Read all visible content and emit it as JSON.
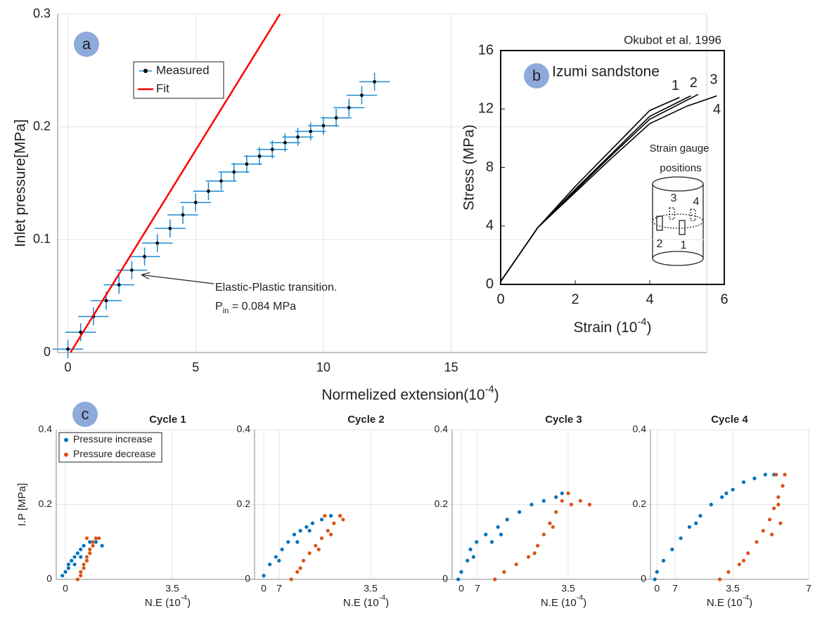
{
  "chart_data": [
    {
      "type": "scatter",
      "panel_label": "a",
      "xlabel": {
        "text": "Normelized extension(10",
        "sup": "-4",
        "end": ")"
      },
      "ylabel": "Inlet pressure[MPa]",
      "xlim": [
        -0.4,
        25
      ],
      "ylim": [
        0,
        0.3
      ],
      "xticks": [
        0,
        5,
        10,
        15
      ],
      "yticks": [
        0,
        0.1,
        0.2,
        0.3
      ],
      "grid": true,
      "legend": "upper left",
      "series": [
        {
          "name": "Measured",
          "color": "#000000",
          "error_color": "#1a8ad4",
          "x": [
            0,
            0.5,
            1,
            1.5,
            2,
            2.5,
            3,
            3.5,
            4,
            4.5,
            5,
            5.5,
            6,
            6.5,
            7,
            7.5,
            8,
            8.5,
            9,
            9.5,
            10,
            10.5,
            11,
            11.5,
            12
          ],
          "values": [
            0.003,
            0.018,
            0.032,
            0.046,
            0.06,
            0.073,
            0.085,
            0.097,
            0.11,
            0.122,
            0.133,
            0.143,
            0.152,
            0.16,
            0.167,
            0.174,
            0.18,
            0.186,
            0.191,
            0.196,
            0.201,
            0.208,
            0.217,
            0.228,
            0.24
          ],
          "x_error": 0.6,
          "y_error": 0.008
        },
        {
          "name": "Fit",
          "color": "#ff0000",
          "style": "line",
          "x": [
            0.1,
            8.3
          ],
          "values": [
            0,
            0.3
          ]
        }
      ],
      "annotation": {
        "text": "Elastic-Plastic transition.",
        "line2": {
          "text": "P",
          "sub": "in",
          "end": " = 0.084 MPa"
        },
        "xy": [
          2.8,
          0.07
        ]
      }
    },
    {
      "type": "line",
      "panel_label": "b",
      "title": "Okubot et al. 1996",
      "subtitle": "Izumi  sandstone",
      "xlabel": {
        "text": "Strain (10",
        "sup": "-4",
        "end": ")"
      },
      "ylabel": "Stress (MPa)",
      "xlim": [
        0,
        6
      ],
      "ylim": [
        0,
        16
      ],
      "xticks": [
        0,
        2,
        4,
        6
      ],
      "yticks": [
        0,
        4,
        8,
        12,
        16
      ],
      "grid": false,
      "series": [
        {
          "name": "1",
          "color": "#000000",
          "x": [
            0,
            1,
            2,
            3,
            4,
            4.8
          ],
          "values": [
            0.2,
            3.9,
            6.7,
            9.3,
            11.9,
            12.8
          ]
        },
        {
          "name": "2",
          "color": "#000000",
          "x": [
            0,
            1,
            2,
            3,
            4,
            5.1
          ],
          "values": [
            0.2,
            3.9,
            6.5,
            9.0,
            11.5,
            12.9
          ]
        },
        {
          "name": "3",
          "color": "#000000",
          "x": [
            0,
            1,
            2,
            3,
            4,
            5.3
          ],
          "values": [
            0.2,
            3.9,
            6.4,
            8.9,
            11.3,
            13.0
          ]
        },
        {
          "name": "4",
          "color": "#000000",
          "x": [
            0,
            1,
            2,
            3,
            4,
            5,
            5.8
          ],
          "values": [
            0.2,
            3.9,
            6.3,
            8.7,
            11.0,
            12.2,
            12.9
          ]
        }
      ],
      "inset": {
        "text": [
          "Strain gauge",
          "positions"
        ],
        "gauges": [
          "3",
          "4",
          "2",
          "1"
        ]
      }
    },
    {
      "type": "scatter",
      "panel_label": "c",
      "title": "Cycle 1",
      "xlabel": {
        "text": "N.E (10",
        "sup": "-4",
        "end": ")"
      },
      "ylabel": "I.P [MPa]",
      "xlim": [
        -0.3,
        7
      ],
      "ylim": [
        0,
        0.4
      ],
      "xticks": [
        0,
        3.5,
        7
      ],
      "yticks": [
        0,
        0.2,
        0.4
      ],
      "grid": true,
      "legend": "upper left",
      "series": [
        {
          "name": "Pressure increase",
          "color": "#0072bd",
          "x": [
            -0.1,
            0,
            0.1,
            0.2,
            0.1,
            0.3,
            0.4,
            0.5,
            0.6,
            0.8,
            1.0,
            1.2,
            0.3,
            0.5
          ],
          "values": [
            0.01,
            0.02,
            0.03,
            0.05,
            0.04,
            0.06,
            0.07,
            0.08,
            0.09,
            0.1,
            0.1,
            0.09,
            0.04,
            0.06
          ]
        },
        {
          "name": "Pressure decrease",
          "color": "#d95319",
          "x": [
            0.4,
            0.5,
            0.6,
            0.7,
            0.8,
            0.9,
            1.0,
            0.6,
            0.7,
            0.8,
            0.9,
            0.5,
            1.1,
            0.7
          ],
          "values": [
            0,
            0.02,
            0.04,
            0.06,
            0.08,
            0.1,
            0.11,
            0.03,
            0.05,
            0.07,
            0.09,
            0.01,
            0.11,
            0.11
          ]
        }
      ]
    },
    {
      "type": "scatter",
      "title": "Cycle 2",
      "xlabel": {
        "text": "N.E (10",
        "sup": "-4",
        "end": ")"
      },
      "xlim": [
        -0.3,
        7
      ],
      "ylim": [
        0,
        0.4
      ],
      "xticks": [
        0,
        3.5,
        7
      ],
      "yticks": [
        0,
        0.2,
        0.4
      ],
      "grid": true,
      "series": [
        {
          "color": "#0072bd",
          "x": [
            0,
            0.2,
            0.4,
            0.6,
            0.8,
            1.0,
            1.2,
            1.4,
            1.6,
            1.9,
            2.2,
            2.5,
            0.5,
            1.1,
            1.5
          ],
          "values": [
            0.01,
            0.04,
            0.06,
            0.08,
            0.1,
            0.12,
            0.13,
            0.14,
            0.15,
            0.16,
            0.17,
            0.17,
            0.05,
            0.1,
            0.13
          ]
        },
        {
          "color": "#d95319",
          "x": [
            0.9,
            1.1,
            1.3,
            1.5,
            1.7,
            1.9,
            2.1,
            2.3,
            2.5,
            1.2,
            1.8,
            2.2,
            2.6,
            2.0
          ],
          "values": [
            0,
            0.02,
            0.05,
            0.07,
            0.09,
            0.11,
            0.13,
            0.15,
            0.17,
            0.03,
            0.08,
            0.12,
            0.16,
            0.17
          ]
        }
      ]
    },
    {
      "type": "scatter",
      "title": "Cycle 3",
      "xlabel": {
        "text": "N.E (10",
        "sup": "-4",
        "end": ")"
      },
      "xlim": [
        -0.3,
        7
      ],
      "ylim": [
        0,
        0.4
      ],
      "xticks": [
        0,
        3.5,
        7
      ],
      "yticks": [
        0,
        0.2,
        0.4
      ],
      "grid": true,
      "series": [
        {
          "color": "#0072bd",
          "x": [
            -0.1,
            0,
            0.2,
            0.3,
            0.5,
            0.8,
            1.2,
            1.5,
            1.9,
            2.3,
            2.7,
            3.1,
            3.3,
            1.0,
            1.3,
            0.4
          ],
          "values": [
            0,
            0.02,
            0.05,
            0.08,
            0.1,
            0.12,
            0.14,
            0.16,
            0.18,
            0.2,
            0.21,
            0.22,
            0.23,
            0.1,
            0.12,
            0.06
          ]
        },
        {
          "color": "#d95319",
          "x": [
            1.1,
            1.4,
            1.8,
            2.2,
            2.5,
            2.7,
            2.9,
            3.1,
            3.3,
            3.5,
            3.9,
            4.2,
            3.6,
            2.4,
            3.0
          ],
          "values": [
            0,
            0.02,
            0.04,
            0.06,
            0.09,
            0.12,
            0.15,
            0.18,
            0.21,
            0.23,
            0.21,
            0.2,
            0.2,
            0.07,
            0.14
          ]
        }
      ]
    },
    {
      "type": "scatter",
      "title": "Cycle 4",
      "xlabel": {
        "text": "N.E (10",
        "sup": "-4",
        "end": ")"
      },
      "xlim": [
        -0.3,
        7
      ],
      "ylim": [
        0,
        0.4
      ],
      "xticks": [
        0,
        3.5,
        7
      ],
      "yticks": [
        0,
        0.2,
        0.4
      ],
      "grid": true,
      "series": [
        {
          "color": "#0072bd",
          "x": [
            -0.1,
            0,
            0.3,
            0.7,
            1.1,
            1.5,
            2.0,
            2.5,
            3.0,
            3.5,
            4.0,
            4.5,
            5.0,
            5.4,
            1.8,
            3.2
          ],
          "values": [
            0,
            0.02,
            0.05,
            0.08,
            0.11,
            0.14,
            0.17,
            0.2,
            0.22,
            0.24,
            0.26,
            0.27,
            0.28,
            0.28,
            0.15,
            0.23
          ]
        },
        {
          "color": "#d95319",
          "x": [
            2.9,
            3.3,
            3.8,
            4.2,
            4.6,
            4.9,
            5.2,
            5.4,
            5.6,
            5.8,
            5.9,
            5.5,
            5.7,
            5.3,
            4.0,
            5.6
          ],
          "values": [
            0,
            0.02,
            0.04,
            0.07,
            0.1,
            0.13,
            0.16,
            0.19,
            0.22,
            0.25,
            0.28,
            0.28,
            0.15,
            0.12,
            0.05,
            0.2
          ]
        }
      ]
    }
  ]
}
